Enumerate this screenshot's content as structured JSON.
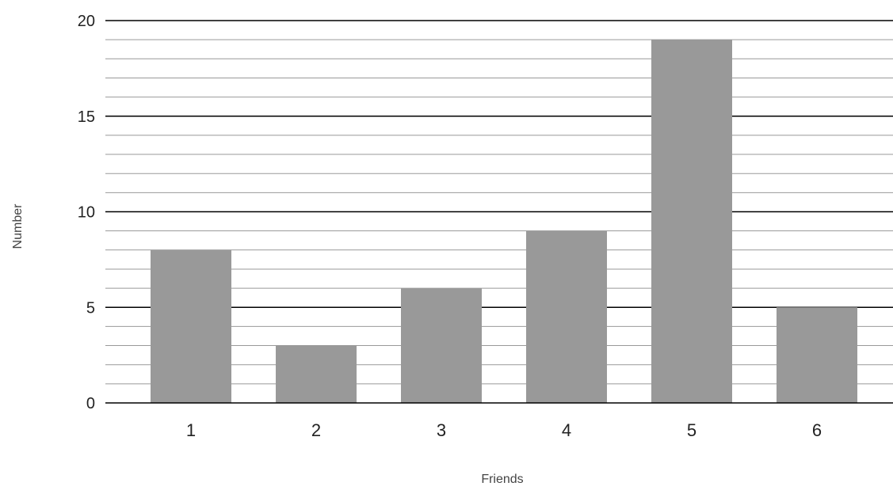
{
  "chart_data": {
    "type": "bar",
    "title": "",
    "xlabel": "Friends",
    "ylabel": "Number",
    "categories": [
      "1",
      "2",
      "3",
      "4",
      "5",
      "6"
    ],
    "values": [
      8,
      3,
      6,
      9,
      19,
      5
    ],
    "ylim": [
      0,
      20
    ],
    "y_ticks": [
      "0",
      "5",
      "10",
      "15",
      "20"
    ],
    "grid": true,
    "minor_grid": true,
    "legend": "none",
    "bar_color": "#999999",
    "major_grid_color": "#000000",
    "minor_grid_color": "#999999"
  }
}
